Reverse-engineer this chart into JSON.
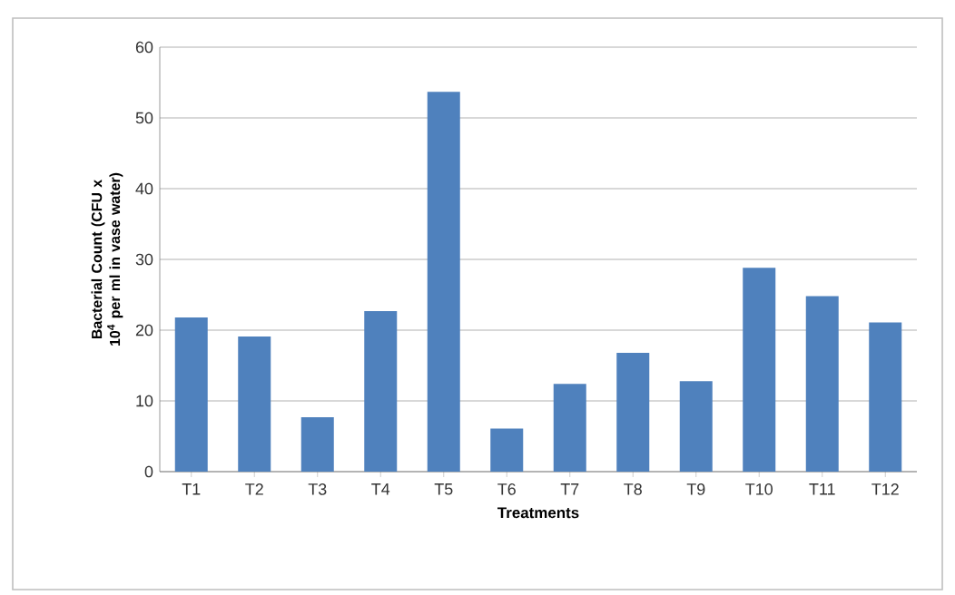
{
  "chart_data": {
    "type": "bar",
    "xlabel": "Treatments",
    "ylabel": "Bacterial Count (CFU x 10$^{4}$ per ml in vase water)",
    "categories": [
      "T1",
      "T2",
      "T3",
      "T4",
      "T5",
      "T6",
      "T7",
      "T8",
      "T9",
      "T10",
      "T11",
      "T12"
    ],
    "values": [
      21.8,
      19.1,
      7.7,
      22.7,
      53.7,
      6.1,
      12.4,
      16.8,
      12.8,
      28.8,
      24.8,
      21.1
    ],
    "color": "#4f81bd",
    "ylim": [
      0,
      60
    ],
    "yticks": [
      0,
      10,
      20,
      30,
      40,
      50,
      60
    ],
    "grid": "y"
  }
}
